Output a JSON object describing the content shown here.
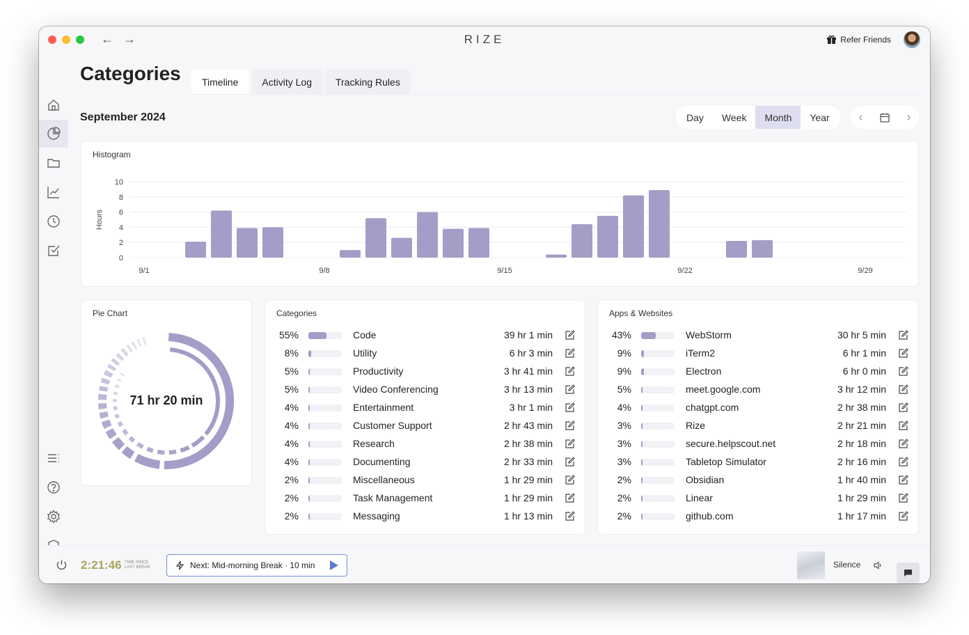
{
  "app": {
    "brand": "RIZE",
    "refer_label": "Refer Friends"
  },
  "page": {
    "title": "Categories",
    "tabs": [
      {
        "label": "Timeline"
      },
      {
        "label": "Activity Log"
      },
      {
        "label": "Tracking Rules"
      }
    ],
    "period": "September 2024",
    "range_options": [
      {
        "label": "Day"
      },
      {
        "label": "Week"
      },
      {
        "label": "Month"
      },
      {
        "label": "Year"
      }
    ],
    "selected_range": "Month",
    "selected_tab": "Timeline"
  },
  "histogram": {
    "title": "Histogram",
    "chart_data": {
      "type": "bar",
      "ylabel": "Hours",
      "ylim": [
        0,
        10
      ],
      "yticks": [
        "10",
        "8",
        "6",
        "4",
        "2",
        "0"
      ],
      "x_ticks": [
        "9/1",
        "9/8",
        "9/15",
        "9/22",
        "9/29"
      ],
      "days": [
        1,
        2,
        3,
        4,
        5,
        6,
        7,
        8,
        9,
        10,
        11,
        12,
        13,
        14,
        15,
        16,
        17,
        18,
        19,
        20,
        21,
        22,
        23,
        24,
        25,
        26,
        27,
        28,
        29,
        30
      ],
      "values": [
        0,
        0,
        2.1,
        6.2,
        3.9,
        4.0,
        0,
        0,
        1.0,
        5.2,
        2.6,
        6.0,
        3.8,
        3.9,
        0,
        0,
        0.4,
        4.4,
        5.5,
        8.2,
        8.9,
        0,
        0,
        2.2,
        2.3,
        0,
        0,
        0,
        0,
        0
      ],
      "color": "#a39dc8",
      "grid": true
    }
  },
  "pie": {
    "title": "Pie Chart",
    "total_label": "71 hr 20 min",
    "color": "#a39dc8"
  },
  "categories": {
    "title": "Categories",
    "rows": [
      {
        "pct": "55%",
        "fraction": 0.55,
        "name": "Code",
        "time": "39 hr 1 min"
      },
      {
        "pct": "8%",
        "fraction": 0.08,
        "name": "Utility",
        "time": "6 hr 3 min"
      },
      {
        "pct": "5%",
        "fraction": 0.05,
        "name": "Productivity",
        "time": "3 hr 41 min"
      },
      {
        "pct": "5%",
        "fraction": 0.05,
        "name": "Video Conferencing",
        "time": "3 hr 13 min"
      },
      {
        "pct": "4%",
        "fraction": 0.04,
        "name": "Entertainment",
        "time": "3 hr 1 min"
      },
      {
        "pct": "4%",
        "fraction": 0.04,
        "name": "Customer Support",
        "time": "2 hr 43 min"
      },
      {
        "pct": "4%",
        "fraction": 0.04,
        "name": "Research",
        "time": "2 hr 38 min"
      },
      {
        "pct": "4%",
        "fraction": 0.04,
        "name": "Documenting",
        "time": "2 hr 33 min"
      },
      {
        "pct": "2%",
        "fraction": 0.02,
        "name": "Miscellaneous",
        "time": "1 hr 29 min"
      },
      {
        "pct": "2%",
        "fraction": 0.02,
        "name": "Task Management",
        "time": "1 hr 29 min"
      },
      {
        "pct": "2%",
        "fraction": 0.02,
        "name": "Messaging",
        "time": "1 hr 13 min"
      }
    ]
  },
  "apps": {
    "title": "Apps & Websites",
    "rows": [
      {
        "pct": "43%",
        "fraction": 0.43,
        "name": "WebStorm",
        "time": "30 hr 5 min"
      },
      {
        "pct": "9%",
        "fraction": 0.09,
        "name": "iTerm2",
        "time": "6 hr 1 min"
      },
      {
        "pct": "9%",
        "fraction": 0.09,
        "name": "Electron",
        "time": "6 hr 0 min"
      },
      {
        "pct": "5%",
        "fraction": 0.05,
        "name": "meet.google.com",
        "time": "3 hr 12 min"
      },
      {
        "pct": "4%",
        "fraction": 0.04,
        "name": "chatgpt.com",
        "time": "2 hr 38 min"
      },
      {
        "pct": "3%",
        "fraction": 0.03,
        "name": "Rize",
        "time": "2 hr 21 min"
      },
      {
        "pct": "3%",
        "fraction": 0.03,
        "name": "secure.helpscout.net",
        "time": "2 hr 18 min"
      },
      {
        "pct": "3%",
        "fraction": 0.03,
        "name": "Tabletop Simulator",
        "time": "2 hr 16 min"
      },
      {
        "pct": "2%",
        "fraction": 0.02,
        "name": "Obsidian",
        "time": "1 hr 40 min"
      },
      {
        "pct": "2%",
        "fraction": 0.02,
        "name": "Linear",
        "time": "1 hr 29 min"
      },
      {
        "pct": "2%",
        "fraction": 0.02,
        "name": "github.com",
        "time": "1 hr 17 min"
      }
    ]
  },
  "footer": {
    "timer": "2:21:46",
    "timer_caption_1": "TIME SINCE",
    "timer_caption_2": "LAST BREAK",
    "next_break": "Next: Mid-morning Break · 10 min",
    "sound_label": "Silence"
  },
  "sidebar": {
    "items": [
      {
        "icon": "home-icon"
      },
      {
        "icon": "pie-chart-icon"
      },
      {
        "icon": "folder-icon"
      },
      {
        "icon": "trend-chart-icon"
      },
      {
        "icon": "clock-icon"
      },
      {
        "icon": "checkbox-icon"
      },
      {
        "icon": "list-icon"
      },
      {
        "icon": "help-icon"
      },
      {
        "icon": "settings-icon"
      },
      {
        "icon": "shield-icon"
      }
    ]
  }
}
